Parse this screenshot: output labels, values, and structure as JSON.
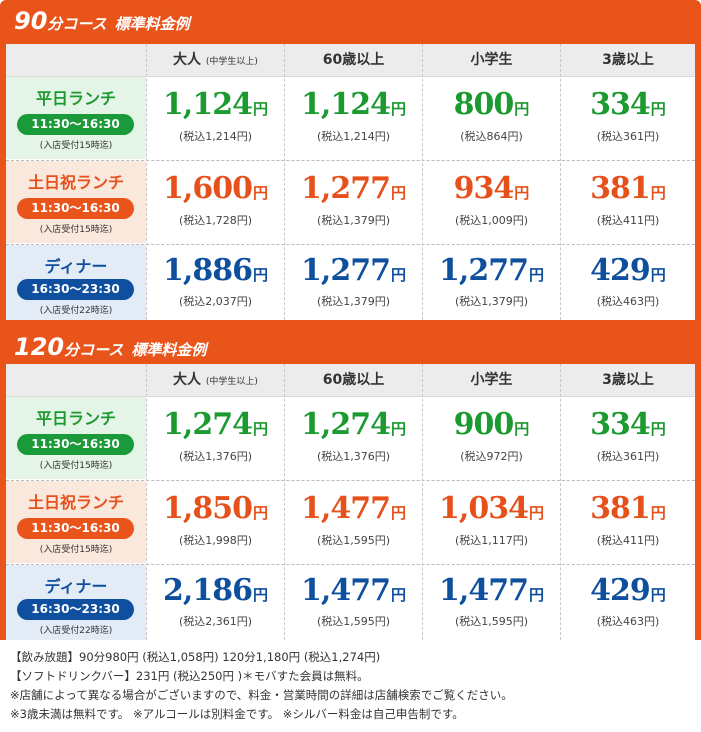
{
  "sections": [
    {
      "title_num": "90",
      "title_unit": "分コース",
      "title_sub": "標準料金例",
      "headers": {
        "adult": "大人",
        "adult_note": "(中学生以上)",
        "senior": "60歳以上",
        "child": "小学生",
        "toddler": "3歳以上"
      },
      "rows": [
        {
          "name": "平日ランチ",
          "time": "11:30～16:30",
          "note": "(入店受付15時迄)",
          "prices": [
            {
              "value": "1,124",
              "unit": "円",
              "tax": "(税込1,214円)"
            },
            {
              "value": "1,124",
              "unit": "円",
              "tax": "(税込1,214円)"
            },
            {
              "value": "800",
              "unit": "円",
              "tax": "(税込864円)"
            },
            {
              "value": "334",
              "unit": "円",
              "tax": "(税込361円)"
            }
          ]
        },
        {
          "name": "土日祝ランチ",
          "time": "11:30～16:30",
          "note": "(入店受付15時迄)",
          "prices": [
            {
              "value": "1,600",
              "unit": "円",
              "tax": "(税込1,728円)"
            },
            {
              "value": "1,277",
              "unit": "円",
              "tax": "(税込1,379円)"
            },
            {
              "value": "934",
              "unit": "円",
              "tax": "(税込1,009円)"
            },
            {
              "value": "381",
              "unit": "円",
              "tax": "(税込411円)"
            }
          ]
        },
        {
          "name": "ディナー",
          "time": "16:30～23:30",
          "note": "(入店受付22時迄)",
          "prices": [
            {
              "value": "1,886",
              "unit": "円",
              "tax": "(税込2,037円)"
            },
            {
              "value": "1,277",
              "unit": "円",
              "tax": "(税込1,379円)"
            },
            {
              "value": "1,277",
              "unit": "円",
              "tax": "(税込1,379円)"
            },
            {
              "value": "429",
              "unit": "円",
              "tax": "(税込463円)"
            }
          ]
        }
      ]
    },
    {
      "title_num": "120",
      "title_unit": "分コース",
      "title_sub": "標準料金例",
      "headers": {
        "adult": "大人",
        "adult_note": "(中学生以上)",
        "senior": "60歳以上",
        "child": "小学生",
        "toddler": "3歳以上"
      },
      "rows": [
        {
          "name": "平日ランチ",
          "time": "11:30～16:30",
          "note": "(入店受付15時迄)",
          "prices": [
            {
              "value": "1,274",
              "unit": "円",
              "tax": "(税込1,376円)"
            },
            {
              "value": "1,274",
              "unit": "円",
              "tax": "(税込1,376円)"
            },
            {
              "value": "900",
              "unit": "円",
              "tax": "(税込972円)"
            },
            {
              "value": "334",
              "unit": "円",
              "tax": "(税込361円)"
            }
          ]
        },
        {
          "name": "土日祝ランチ",
          "time": "11:30～16:30",
          "note": "(入店受付15時迄)",
          "prices": [
            {
              "value": "1,850",
              "unit": "円",
              "tax": "(税込1,998円)"
            },
            {
              "value": "1,477",
              "unit": "円",
              "tax": "(税込1,595円)"
            },
            {
              "value": "1,034",
              "unit": "円",
              "tax": "(税込1,117円)"
            },
            {
              "value": "381",
              "unit": "円",
              "tax": "(税込411円)"
            }
          ]
        },
        {
          "name": "ディナー",
          "time": "16:30～23:30",
          "note": "(入店受付22時迄)",
          "prices": [
            {
              "value": "2,186",
              "unit": "円",
              "tax": "(税込2,361円)"
            },
            {
              "value": "1,477",
              "unit": "円",
              "tax": "(税込1,595円)"
            },
            {
              "value": "1,477",
              "unit": "円",
              "tax": "(税込1,595円)"
            },
            {
              "value": "429",
              "unit": "円",
              "tax": "(税込463円)"
            }
          ]
        }
      ]
    }
  ],
  "footer": {
    "line1": "【飲み放題】90分980円 (税込1,058円) 120分1,180円 (税込1,274円)",
    "line2": "【ソフトドリンクバー】231円 (税込250円 )＊モバすた会員は無料。",
    "line3": "※店舗によって異なる場合がございますので、料金・営業時間の詳細は店舗検索でご覧ください。",
    "line4": "※3歳未満は無料です。 ※アルコールは別料金です。 ※シルバー料金は自己申告制です。"
  },
  "colors": {
    "frame": "#e8541a",
    "weekday": "#1b9a30",
    "holiday": "#e6501a",
    "dinner": "#0e4f9e"
  }
}
